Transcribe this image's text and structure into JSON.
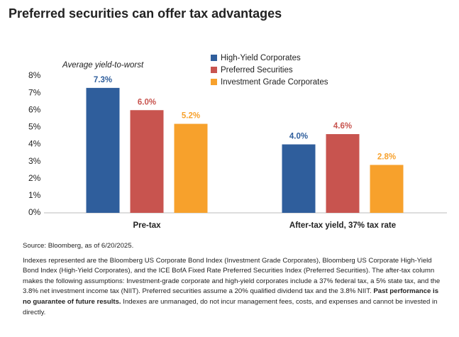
{
  "chart_data": {
    "type": "bar",
    "title": "Preferred securities can offer tax advantages",
    "y_label": "Average yield-to-worst",
    "categories": [
      "Pre-tax",
      "After-tax yield, 37% tax rate"
    ],
    "series": [
      {
        "name": "High-Yield Corporates",
        "color": "#2f5e9c",
        "values": [
          7.3,
          4.0
        ],
        "value_labels": [
          "7.3%",
          "4.0%"
        ]
      },
      {
        "name": "Preferred Securities",
        "color": "#c8544f",
        "values": [
          6.0,
          4.6
        ],
        "value_labels": [
          "6.0%",
          "4.6%"
        ]
      },
      {
        "name": "Investment Grade Corporates",
        "color": "#f7a12c",
        "values": [
          5.2,
          2.8
        ],
        "value_labels": [
          "5.2%",
          "2.8%"
        ]
      }
    ],
    "ylim": [
      0,
      8
    ],
    "yticks": [
      {
        "value": 0,
        "label": "0%"
      },
      {
        "value": 1,
        "label": "1%"
      },
      {
        "value": 2,
        "label": "2%"
      },
      {
        "value": 3,
        "label": "3%"
      },
      {
        "value": 4,
        "label": "4%"
      },
      {
        "value": 5,
        "label": "5%"
      },
      {
        "value": 6,
        "label": "6%"
      },
      {
        "value": 7,
        "label": "7%"
      },
      {
        "value": 8,
        "label": "8%"
      }
    ],
    "grid": false,
    "legend": "top-right"
  },
  "footnotes": {
    "source": "Source: Bloomberg, as of 6/20/2025.",
    "note_parts": [
      "Indexes represented are the Bloomberg US Corporate Bond Index (Investment Grade Corporates), Bloomberg US Corporate High-Yield Bond Index (High-Yield Corporates), and the ICE BofA Fixed Rate Preferred Securities Index (Preferred Securities). The after-tax column makes the following assumptions: Investment-grade corporate and high-yield corporates include a 37% federal tax, a 5% state tax, and the 3.8% net investment income tax (NIIT). Preferred securities assume a 20% qualified dividend tax and the 3.8% NIIT.",
      "Past performance is no guarantee of future results.",
      "Indexes are unmanaged, do not incur management fees, costs, and expenses and cannot be invested in directly."
    ]
  }
}
